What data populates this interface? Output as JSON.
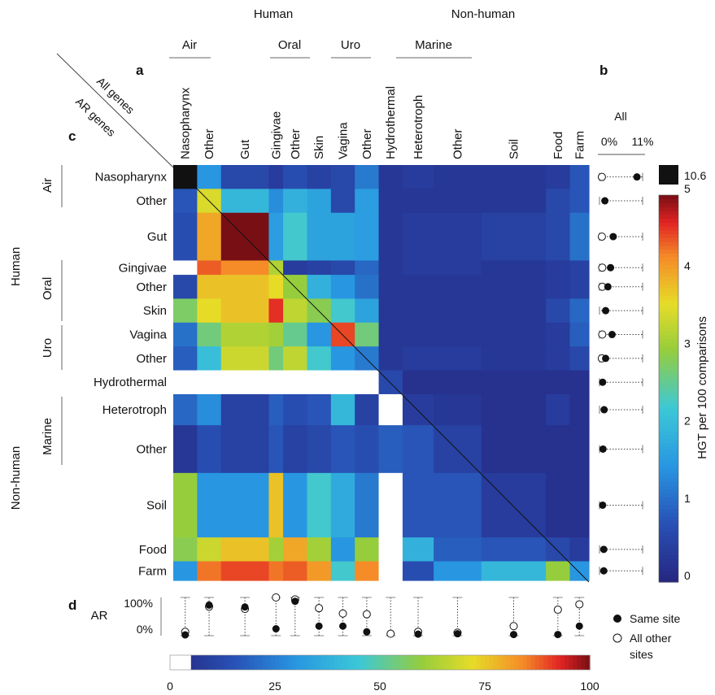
{
  "labels": {
    "panel_a": "a",
    "panel_b": "b",
    "panel_c": "c",
    "panel_d": "d",
    "all_genes": "All genes",
    "ar_genes": "AR genes",
    "all": "All",
    "b_min": "0%",
    "b_max": "11%",
    "ar": "AR",
    "d_max": "100%",
    "d_min": "0%",
    "legend_same": "Same site",
    "legend_other_1": "All other",
    "legend_other_2": "sites"
  },
  "colorbar": {
    "label": "HGT per 100 comparisons",
    "ticks": [
      "0",
      "1",
      "2",
      "3",
      "4",
      "5"
    ],
    "max_label": "10.6",
    "max_color": "#111111"
  },
  "bottom_colorbar": {
    "ticks": [
      "0",
      "25",
      "50",
      "75",
      "100"
    ]
  },
  "chart_data": {
    "type": "heatmap",
    "rows": [
      "Nasopharynx",
      "Other",
      "Gut",
      "Gingivae",
      "Other",
      "Skin",
      "Vagina",
      "Other",
      "Hydrothermal",
      "Heterotroph",
      "Other",
      "Soil",
      "Food",
      "Farm"
    ],
    "columns": [
      "Nasopharynx",
      "Other",
      "Gut",
      "Gingivae",
      "Other",
      "Skin",
      "Vagina",
      "Other",
      "Hydrothermal",
      "Heterotroph",
      "Other",
      "Soil",
      "Food",
      "Farm"
    ],
    "size_weights": [
      1,
      1,
      2,
      0.6,
      1,
      1,
      1,
      1,
      1,
      1.3,
      2,
      2.7,
      1,
      0.8
    ],
    "upper_triangle": "All genes",
    "lower_triangle": "AR genes",
    "values": [
      [
        10.6,
        1.5,
        0.6,
        0.4,
        0.7,
        0.5,
        0.6,
        1.2,
        0.3,
        0.4,
        0.3,
        0.3,
        0.4,
        0.8
      ],
      [
        0.8,
        3.5,
        2.0,
        1.4,
        1.9,
        1.7,
        0.6,
        1.6,
        0.3,
        0.3,
        0.3,
        0.3,
        0.6,
        0.8
      ],
      [
        0.7,
        4.0,
        5.0,
        1.6,
        2.3,
        1.7,
        1.7,
        1.6,
        0.3,
        0.4,
        0.4,
        0.5,
        0.6,
        1.1
      ],
      [
        null,
        4.4,
        4.2,
        3.2,
        0.4,
        0.5,
        0.6,
        1.0,
        0.3,
        0.4,
        0.4,
        0.3,
        0.4,
        0.5
      ],
      [
        0.6,
        3.8,
        3.8,
        3.6,
        3.0,
        1.9,
        1.5,
        1.1,
        0.3,
        0.3,
        0.3,
        0.3,
        0.4,
        0.5
      ],
      [
        2.8,
        3.6,
        3.8,
        4.6,
        3.3,
        2.9,
        2.3,
        1.7,
        0.3,
        0.3,
        0.3,
        0.3,
        0.6,
        1.0
      ],
      [
        1.1,
        2.7,
        3.2,
        3.1,
        2.6,
        1.5,
        4.5,
        2.7,
        0.3,
        0.3,
        0.3,
        0.3,
        0.4,
        0.9
      ],
      [
        0.9,
        2.1,
        3.4,
        2.7,
        3.3,
        2.3,
        1.5,
        1.2,
        0.3,
        0.4,
        0.4,
        0.3,
        0.4,
        0.6
      ],
      [
        null,
        null,
        null,
        null,
        null,
        null,
        null,
        null,
        0.6,
        0.2,
        0.2,
        0.2,
        0.2,
        0.2
      ],
      [
        1.0,
        1.4,
        0.5,
        0.9,
        0.7,
        0.8,
        2.0,
        0.5,
        null,
        0.4,
        0.3,
        0.2,
        0.4,
        0.2
      ],
      [
        0.3,
        0.7,
        0.5,
        0.8,
        0.5,
        0.6,
        0.8,
        0.7,
        0.9,
        0.8,
        0.5,
        0.2,
        0.2,
        0.2
      ],
      [
        3.0,
        1.5,
        1.5,
        3.8,
        1.5,
        2.3,
        1.8,
        1.2,
        null,
        0.8,
        0.8,
        0.4,
        0.2,
        0.2
      ],
      [
        2.9,
        3.4,
        3.8,
        3.1,
        4.0,
        3.1,
        1.5,
        3.0,
        null,
        1.9,
        0.9,
        0.8,
        0.6,
        0.4
      ],
      [
        1.5,
        4.3,
        4.5,
        4.3,
        4.4,
        4.1,
        2.3,
        4.2,
        null,
        0.7,
        1.5,
        2.0,
        3.0,
        1.5
      ]
    ],
    "colorbar_range": [
      0,
      5
    ],
    "panel_b": {
      "title": "All",
      "range_percent": [
        0,
        11
      ],
      "same_site_percent": [
        9.5,
        1.0,
        3.2,
        2.5,
        1.8,
        1.2,
        2.9,
        1.2,
        0.4,
        0.8,
        0.5,
        0.4,
        0.7,
        0.7
      ],
      "other_sites_percent": [
        0.2,
        null,
        0.2,
        0.3,
        0.3,
        null,
        0.3,
        0.2,
        null,
        null,
        null,
        null,
        null,
        null
      ]
    },
    "panel_d": {
      "title": "AR",
      "range_percent": [
        0,
        100
      ],
      "same_site_percent": [
        2,
        80,
        75,
        18,
        90,
        25,
        25,
        10,
        null,
        4,
        5,
        3,
        3,
        25
      ],
      "other_sites_percent": [
        10,
        76,
        70,
        100,
        95,
        72,
        58,
        56,
        5,
        10,
        8,
        25,
        68,
        82
      ]
    },
    "bottom_colorbar_range": [
      0,
      100
    ]
  },
  "header": {
    "human": "Human",
    "non_human": "Non-human",
    "air": "Air",
    "oral": "Oral",
    "uro": "Uro",
    "marine": "Marine"
  },
  "sidebar": {
    "air": "Air",
    "human": "Human",
    "oral": "Oral",
    "uro": "Uro",
    "marine": "Marine",
    "non_human": "Non-human"
  }
}
